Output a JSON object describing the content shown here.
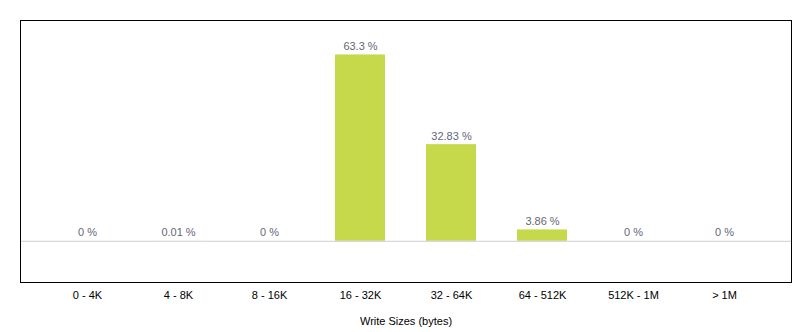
{
  "chart_data": {
    "type": "bar",
    "categories": [
      "0 - 4K",
      "4 - 8K",
      "8 - 16K",
      "16 - 32K",
      "32 - 64K",
      "64 - 512K",
      "512K - 1M",
      "> 1M"
    ],
    "values": [
      0.0,
      0.01,
      0.0,
      63.3,
      32.83,
      3.86,
      0.0,
      0.0
    ],
    "value_labels": [
      "0 %",
      "0.01 %",
      "0 %",
      "63.3 %",
      "32.83 %",
      "3.86 %",
      "0 %",
      "0 %"
    ],
    "color": "#c5d94a",
    "xlabel": "Write Sizes (bytes)",
    "ylim": [
      -14,
      75
    ],
    "yticks": [],
    "grid": false,
    "data_labels": true,
    "tick_labels": "x"
  }
}
